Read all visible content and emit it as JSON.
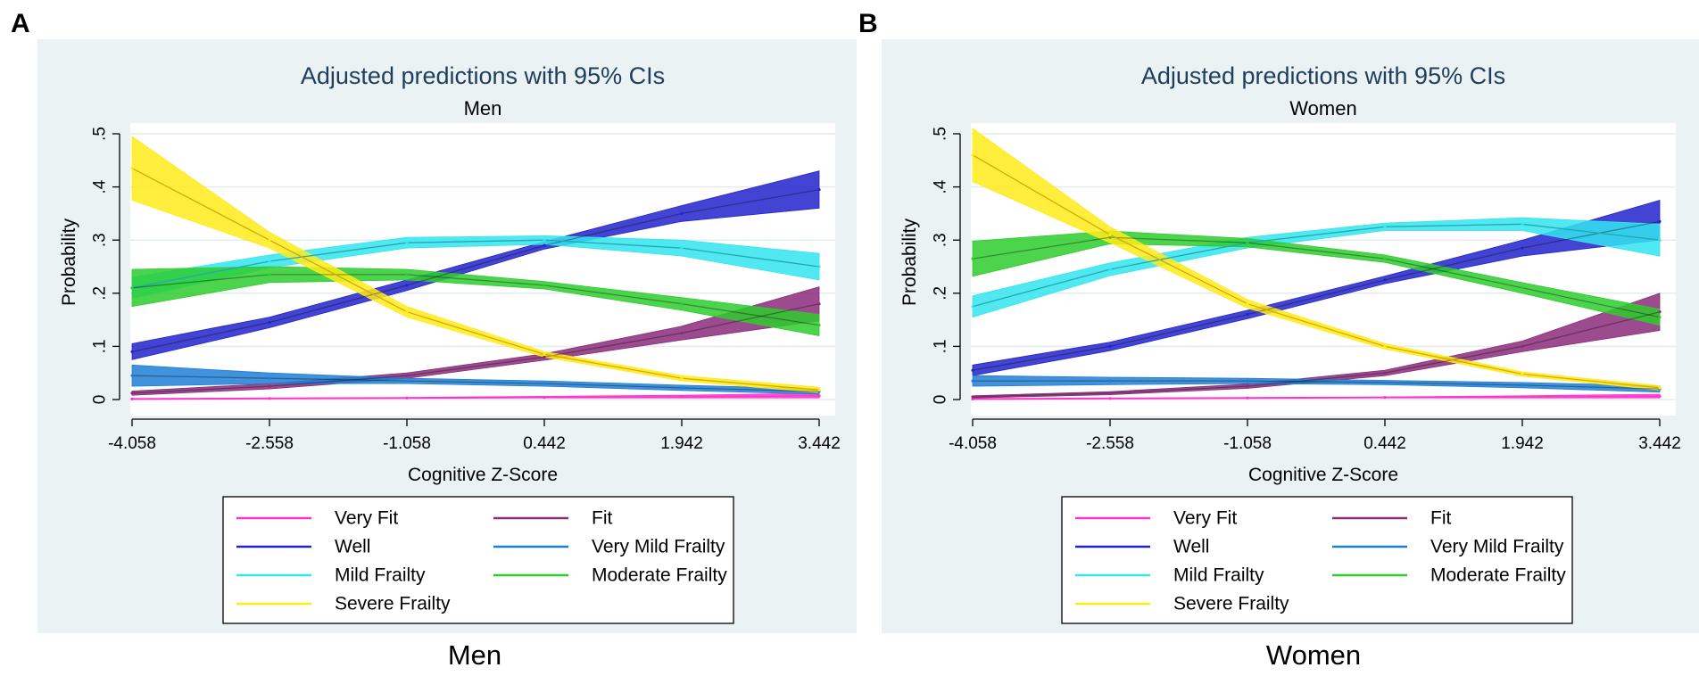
{
  "figure": {
    "bg": "#eaf2f3",
    "plot_bg": "#ffffff"
  },
  "chart_data": [
    {
      "panel": "A",
      "type": "line",
      "title": "Adjusted predictions with 95% CIs",
      "subtitle": "Men",
      "caption": "Men",
      "xlabel": "Cognitive Z-Score",
      "ylabel": "Probability",
      "x": [
        -4.058,
        -2.558,
        -1.058,
        0.442,
        1.942,
        3.442
      ],
      "x_tick_labels": [
        "-4.058",
        "-2.558",
        "-1.058",
        "0.442",
        "1.942",
        "3.442"
      ],
      "ylim": [
        0,
        0.5
      ],
      "y_ticks": [
        0,
        0.1,
        0.2,
        0.3,
        0.4,
        0.5
      ],
      "y_tick_labels": [
        "0",
        ".1",
        ".2",
        ".3",
        ".4",
        ".5"
      ],
      "series": [
        {
          "name": "Very Fit",
          "color": "#ff33cc",
          "values": [
            0.001,
            0.002,
            0.003,
            0.004,
            0.005,
            0.007
          ],
          "lower": [
            0.0,
            0.001,
            0.002,
            0.003,
            0.003,
            0.003
          ],
          "upper": [
            0.002,
            0.003,
            0.004,
            0.006,
            0.008,
            0.012
          ]
        },
        {
          "name": "Fit",
          "color": "#8b2c7a",
          "values": [
            0.012,
            0.025,
            0.045,
            0.08,
            0.125,
            0.18
          ],
          "lower": [
            0.008,
            0.02,
            0.04,
            0.074,
            0.112,
            0.148
          ],
          "upper": [
            0.016,
            0.03,
            0.05,
            0.086,
            0.138,
            0.212
          ]
        },
        {
          "name": "Well",
          "color": "#2323cc",
          "values": [
            0.09,
            0.145,
            0.215,
            0.29,
            0.35,
            0.395
          ],
          "lower": [
            0.075,
            0.135,
            0.205,
            0.283,
            0.335,
            0.36
          ],
          "upper": [
            0.105,
            0.155,
            0.225,
            0.297,
            0.365,
            0.43
          ]
        },
        {
          "name": "Very Mild Frailty",
          "color": "#1e7fd6",
          "values": [
            0.045,
            0.04,
            0.035,
            0.03,
            0.022,
            0.015
          ],
          "lower": [
            0.025,
            0.03,
            0.03,
            0.025,
            0.017,
            0.01
          ],
          "upper": [
            0.065,
            0.05,
            0.04,
            0.035,
            0.027,
            0.02
          ]
        },
        {
          "name": "Mild Frailty",
          "color": "#33e5ee",
          "values": [
            0.21,
            0.26,
            0.295,
            0.3,
            0.285,
            0.25
          ],
          "lower": [
            0.19,
            0.248,
            0.285,
            0.292,
            0.27,
            0.225
          ],
          "upper": [
            0.23,
            0.272,
            0.305,
            0.308,
            0.3,
            0.275
          ]
        },
        {
          "name": "Moderate Frailty",
          "color": "#2ecc2e",
          "values": [
            0.21,
            0.235,
            0.235,
            0.215,
            0.18,
            0.14
          ],
          "lower": [
            0.175,
            0.22,
            0.225,
            0.208,
            0.168,
            0.12
          ],
          "upper": [
            0.245,
            0.25,
            0.245,
            0.222,
            0.192,
            0.16
          ]
        },
        {
          "name": "Severe Frailty",
          "color": "#ffeb1a",
          "values": [
            0.435,
            0.3,
            0.165,
            0.085,
            0.04,
            0.018
          ],
          "lower": [
            0.375,
            0.285,
            0.155,
            0.08,
            0.035,
            0.013
          ],
          "upper": [
            0.495,
            0.315,
            0.175,
            0.09,
            0.045,
            0.023
          ]
        }
      ]
    },
    {
      "panel": "B",
      "type": "line",
      "title": "Adjusted predictions with 95% CIs",
      "subtitle": "Women",
      "caption": "Women",
      "xlabel": "Cognitive Z-Score",
      "ylabel": "Probability",
      "x": [
        -4.058,
        -2.558,
        -1.058,
        0.442,
        1.942,
        3.442
      ],
      "x_tick_labels": [
        "-4.058",
        "-2.558",
        "-1.058",
        "0.442",
        "1.942",
        "3.442"
      ],
      "ylim": [
        0,
        0.5
      ],
      "y_ticks": [
        0,
        0.1,
        0.2,
        0.3,
        0.4,
        0.5
      ],
      "y_tick_labels": [
        "0",
        ".1",
        ".2",
        ".3",
        ".4",
        ".5"
      ],
      "series": [
        {
          "name": "Very Fit",
          "color": "#ff33cc",
          "values": [
            0.001,
            0.002,
            0.003,
            0.004,
            0.005,
            0.006
          ],
          "lower": [
            0.0,
            0.001,
            0.002,
            0.003,
            0.003,
            0.003
          ],
          "upper": [
            0.002,
            0.003,
            0.004,
            0.005,
            0.007,
            0.01
          ]
        },
        {
          "name": "Fit",
          "color": "#8b2c7a",
          "values": [
            0.005,
            0.012,
            0.025,
            0.05,
            0.1,
            0.165
          ],
          "lower": [
            0.003,
            0.009,
            0.021,
            0.045,
            0.09,
            0.13
          ],
          "upper": [
            0.007,
            0.015,
            0.029,
            0.055,
            0.11,
            0.2
          ]
        },
        {
          "name": "Well",
          "color": "#2323cc",
          "values": [
            0.055,
            0.1,
            0.16,
            0.225,
            0.285,
            0.335
          ],
          "lower": [
            0.045,
            0.092,
            0.152,
            0.218,
            0.27,
            0.3
          ],
          "upper": [
            0.065,
            0.108,
            0.168,
            0.232,
            0.3,
            0.375
          ]
        },
        {
          "name": "Very Mild Frailty",
          "color": "#1e7fd6",
          "values": [
            0.035,
            0.035,
            0.035,
            0.032,
            0.027,
            0.02
          ],
          "lower": [
            0.025,
            0.028,
            0.03,
            0.028,
            0.022,
            0.014
          ],
          "upper": [
            0.045,
            0.042,
            0.04,
            0.036,
            0.032,
            0.026
          ]
        },
        {
          "name": "Mild Frailty",
          "color": "#33e5ee",
          "values": [
            0.175,
            0.245,
            0.295,
            0.325,
            0.33,
            0.3
          ],
          "lower": [
            0.155,
            0.233,
            0.285,
            0.318,
            0.318,
            0.27
          ],
          "upper": [
            0.195,
            0.257,
            0.305,
            0.332,
            0.342,
            0.33
          ]
        },
        {
          "name": "Moderate Frailty",
          "color": "#2ecc2e",
          "values": [
            0.265,
            0.305,
            0.295,
            0.265,
            0.21,
            0.155
          ],
          "lower": [
            0.232,
            0.293,
            0.287,
            0.258,
            0.2,
            0.14
          ],
          "upper": [
            0.298,
            0.317,
            0.303,
            0.272,
            0.22,
            0.17
          ]
        },
        {
          "name": "Severe Frailty",
          "color": "#ffeb1a",
          "values": [
            0.46,
            0.31,
            0.18,
            0.1,
            0.048,
            0.022
          ],
          "lower": [
            0.41,
            0.295,
            0.172,
            0.095,
            0.044,
            0.018
          ],
          "upper": [
            0.51,
            0.325,
            0.188,
            0.105,
            0.052,
            0.026
          ]
        }
      ]
    }
  ]
}
